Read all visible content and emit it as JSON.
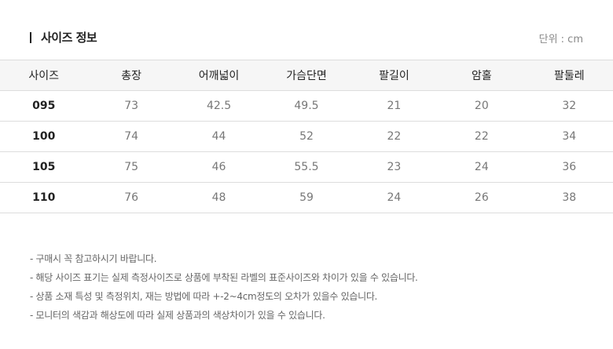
{
  "header": {
    "title": "사이즈 정보",
    "unit": "단위 : cm"
  },
  "table": {
    "columns": [
      "사이즈",
      "총장",
      "어깨넓이",
      "가슴단면",
      "팔길이",
      "암홀",
      "팔둘레"
    ],
    "rows": [
      [
        "095",
        "73",
        "42.5",
        "49.5",
        "21",
        "20",
        "32"
      ],
      [
        "100",
        "74",
        "44",
        "52",
        "22",
        "22",
        "34"
      ],
      [
        "105",
        "75",
        "46",
        "55.5",
        "23",
        "24",
        "36"
      ],
      [
        "110",
        "76",
        "48",
        "59",
        "24",
        "26",
        "38"
      ]
    ]
  },
  "notes": [
    "- 구매시 꼭 참고하시기 바랍니다.",
    "- 해당 사이즈 표기는 실제 측정사이즈로 상품에 부착된 라벨의 표준사이즈와 차이가 있을 수 있습니다.",
    "- 상품 소재 특성 및 측정위치, 재는 방법에 따라 +-2~4cm정도의 오차가 있을수 있습니다.",
    "- 모니터의 색감과 해상도에 따라 실제 상품과의 색상차이가 있을 수 있습니다."
  ]
}
